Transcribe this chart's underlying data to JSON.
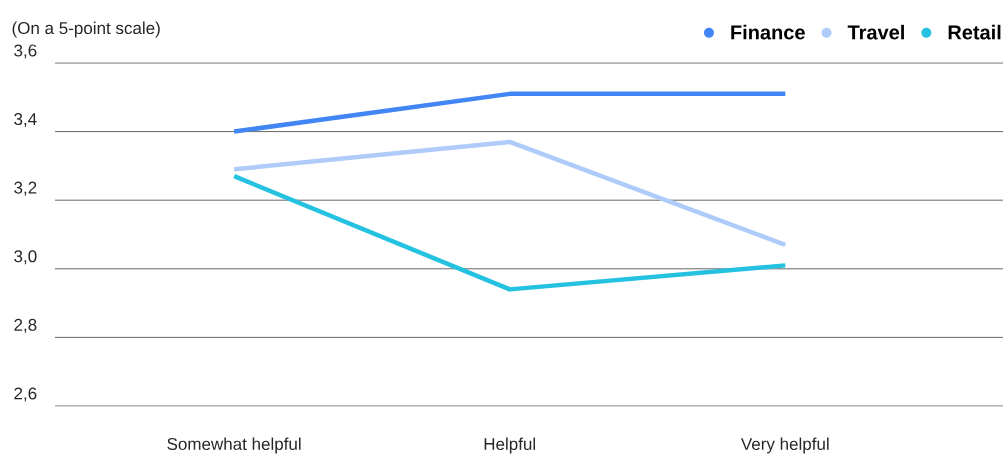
{
  "chart_data": {
    "type": "line",
    "ylabel": "(On a 5-point scale)",
    "categories": [
      "Somewhat helpful",
      "Helpful",
      "Very helpful"
    ],
    "series": [
      {
        "name": "Finance",
        "color": "#4285f4",
        "values": [
          3.4,
          3.51,
          3.51
        ]
      },
      {
        "name": "Travel",
        "color": "#aecbfa",
        "values": [
          3.29,
          3.37,
          3.07
        ]
      },
      {
        "name": "Retail",
        "color": "#24c1e0",
        "values": [
          3.27,
          2.94,
          3.01
        ]
      }
    ],
    "ylim": [
      2.6,
      3.6
    ],
    "yticks": [
      {
        "value": 2.6,
        "label": "2,6"
      },
      {
        "value": 2.8,
        "label": "2,8"
      },
      {
        "value": 3.0,
        "label": "3,0"
      },
      {
        "value": 3.2,
        "label": "3,2"
      },
      {
        "value": 3.4,
        "label": "3,4"
      },
      {
        "value": 3.6,
        "label": "3,6"
      }
    ],
    "grid": "y",
    "legend": "top right",
    "marker": "none",
    "line_style": "solid"
  }
}
